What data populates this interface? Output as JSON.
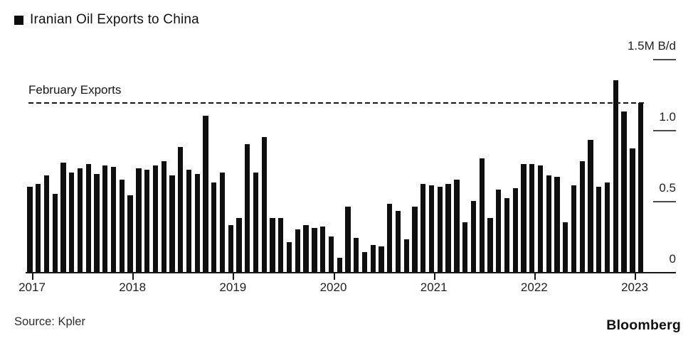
{
  "legend": {
    "label": "Iranian Oil Exports to China"
  },
  "annotation": {
    "label": "February Exports",
    "value": 1.19
  },
  "source": "Source: Kpler",
  "brand": "Bloomberg",
  "colors": {
    "background": "#ffffff",
    "bar": "#0f0f0f",
    "axis": "#161616",
    "tick": "#4a4a4a",
    "text": "#1f1f1f"
  },
  "y_axis": {
    "ticks": [
      {
        "label": "1.5M B/d",
        "value": 1.5
      },
      {
        "label": "1.0",
        "value": 1.0
      },
      {
        "label": "0.5",
        "value": 0.5
      },
      {
        "label": "0",
        "value": 0.0
      }
    ]
  },
  "x_axis": {
    "years": [
      "2017",
      "2018",
      "2019",
      "2020",
      "2021",
      "2022",
      "2023"
    ]
  },
  "chart_data": {
    "type": "bar",
    "title": "Iranian Oil Exports to China",
    "unit": "M B/d",
    "ylim": [
      0,
      1.5
    ],
    "grid": false,
    "legend_position": "top-left",
    "annotation_line": {
      "label": "February Exports",
      "value": 1.19,
      "style": "dashed"
    },
    "x": [
      "2017-01",
      "2017-02",
      "2017-03",
      "2017-04",
      "2017-05",
      "2017-06",
      "2017-07",
      "2017-08",
      "2017-09",
      "2017-10",
      "2017-11",
      "2017-12",
      "2018-01",
      "2018-02",
      "2018-03",
      "2018-04",
      "2018-05",
      "2018-06",
      "2018-07",
      "2018-08",
      "2018-09",
      "2018-10",
      "2018-11",
      "2018-12",
      "2019-01",
      "2019-02",
      "2019-03",
      "2019-04",
      "2019-05",
      "2019-06",
      "2019-07",
      "2019-08",
      "2019-09",
      "2019-10",
      "2019-11",
      "2019-12",
      "2020-01",
      "2020-02",
      "2020-03",
      "2020-04",
      "2020-05",
      "2020-06",
      "2020-07",
      "2020-08",
      "2020-09",
      "2020-10",
      "2020-11",
      "2020-12",
      "2021-01",
      "2021-02",
      "2021-03",
      "2021-04",
      "2021-05",
      "2021-06",
      "2021-07",
      "2021-08",
      "2021-09",
      "2021-10",
      "2021-11",
      "2021-12",
      "2022-01",
      "2022-02",
      "2022-03",
      "2022-04",
      "2022-05",
      "2022-06",
      "2022-07",
      "2022-08",
      "2022-09",
      "2022-10",
      "2022-11",
      "2022-12",
      "2023-01",
      "2023-02"
    ],
    "values": [
      0.6,
      0.62,
      0.68,
      0.55,
      0.77,
      0.7,
      0.73,
      0.76,
      0.69,
      0.75,
      0.74,
      0.65,
      0.54,
      0.73,
      0.72,
      0.75,
      0.78,
      0.68,
      0.88,
      0.72,
      0.69,
      1.1,
      0.63,
      0.7,
      0.33,
      0.38,
      0.9,
      0.7,
      0.95,
      0.38,
      0.38,
      0.21,
      0.3,
      0.33,
      0.31,
      0.32,
      0.25,
      0.1,
      0.46,
      0.24,
      0.14,
      0.19,
      0.18,
      0.48,
      0.43,
      0.23,
      0.46,
      0.62,
      0.61,
      0.6,
      0.62,
      0.65,
      0.35,
      0.5,
      0.8,
      0.38,
      0.58,
      0.52,
      0.59,
      0.76,
      0.76,
      0.75,
      0.68,
      0.67,
      0.35,
      0.61,
      0.78,
      0.93,
      0.6,
      0.63,
      1.35,
      1.13,
      0.87,
      1.19
    ]
  }
}
